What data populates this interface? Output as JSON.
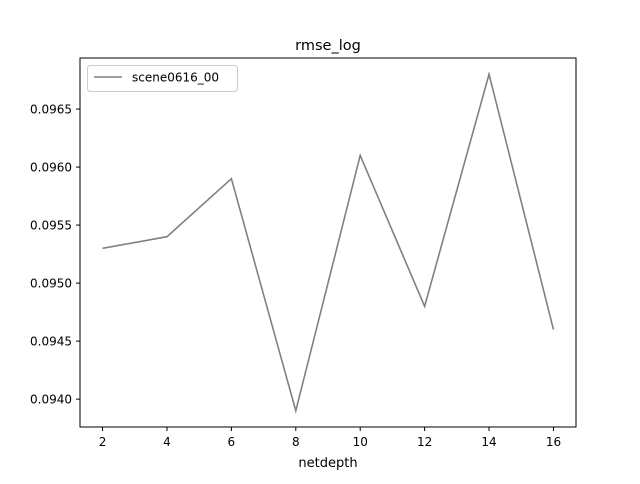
{
  "chart_data": {
    "type": "line",
    "title": "rmse_log",
    "xlabel": "netdepth",
    "ylabel": "",
    "x": [
      2,
      4,
      6,
      8,
      10,
      12,
      14,
      16
    ],
    "series": [
      {
        "name": "scene0616_00",
        "color": "#808080",
        "values": [
          0.0953,
          0.0954,
          0.0959,
          0.0939,
          0.0961,
          0.0948,
          0.0968,
          0.0946
        ]
      }
    ],
    "xticks": [
      2,
      4,
      6,
      8,
      10,
      12,
      14,
      16
    ],
    "yticks": [
      0.094,
      0.0945,
      0.095,
      0.0955,
      0.096,
      0.0965
    ],
    "ytick_labels": [
      "0.0940",
      "0.0945",
      "0.0950",
      "0.0955",
      "0.0960",
      "0.0965"
    ],
    "xlim": [
      1.3,
      16.7
    ],
    "ylim": [
      0.09376,
      0.09694
    ],
    "grid": false,
    "legend_position": "upper-left"
  }
}
